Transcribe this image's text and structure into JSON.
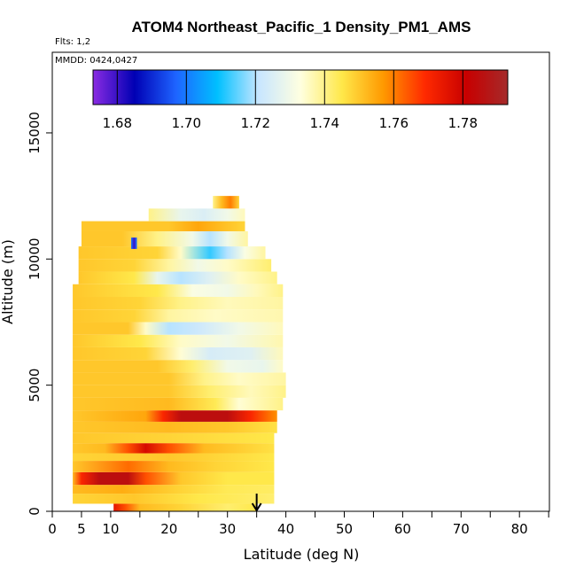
{
  "chart_data": {
    "type": "heatmap",
    "title": "ATOM4 Northeast_Pacific_1 Density_PM1_AMS",
    "flights_label": "Flts: 1,2",
    "dates_label": "MMDD: 0424,0427",
    "xlabel": "Latitude (deg N)",
    "ylabel": "Altitude (m)",
    "xlim": [
      0,
      85
    ],
    "ylim": [
      0,
      17500
    ],
    "x_ticks": [
      0,
      5,
      10,
      20,
      30,
      40,
      50,
      60,
      70,
      80
    ],
    "x_minor_ticks": [
      15,
      25,
      35,
      45,
      55,
      65,
      75,
      85
    ],
    "y_ticks": [
      0,
      5000,
      10000,
      15000
    ],
    "colorbar": {
      "min": 1.673,
      "max": 1.793,
      "ticks": [
        1.68,
        1.7,
        1.72,
        1.74,
        1.76,
        1.78
      ],
      "tick_labels": [
        "1.68",
        "1.70",
        "1.72",
        "1.74",
        "1.76",
        "1.78"
      ],
      "colors": [
        "#8a2be2",
        "#0000b4",
        "#1e64ff",
        "#00c0ff",
        "#c8e6ff",
        "#ffffe0",
        "#ffe84a",
        "#ff9900",
        "#ff2a00",
        "#c80000",
        "#a52a2a"
      ]
    },
    "arrow_latitude": 35,
    "bands": [
      {
        "alt0": 0,
        "alt1": 300,
        "lat0": 10.5,
        "lat1": 35,
        "stops": [
          [
            10.5,
            1.775
          ],
          [
            12.5,
            1.765
          ],
          [
            15,
            1.752
          ],
          [
            22,
            1.748
          ],
          [
            30,
            1.742
          ],
          [
            35,
            1.745
          ]
        ]
      },
      {
        "alt0": 300,
        "alt1": 700,
        "lat0": 3.5,
        "lat1": 38,
        "stops": [
          [
            3.5,
            1.748
          ],
          [
            14,
            1.75
          ],
          [
            25,
            1.745
          ],
          [
            38,
            1.742
          ]
        ]
      },
      {
        "alt0": 700,
        "alt1": 1050,
        "lat0": 3.5,
        "lat1": 38,
        "stops": [
          [
            3.5,
            1.752
          ],
          [
            12,
            1.754
          ],
          [
            22,
            1.748
          ],
          [
            30,
            1.744
          ],
          [
            38,
            1.743
          ]
        ]
      },
      {
        "alt0": 1050,
        "alt1": 1550,
        "lat0": 3.5,
        "lat1": 38,
        "stops": [
          [
            3.5,
            1.752
          ],
          [
            5,
            1.77
          ],
          [
            8,
            1.785
          ],
          [
            13,
            1.785
          ],
          [
            16,
            1.765
          ],
          [
            22,
            1.75
          ],
          [
            30,
            1.745
          ],
          [
            38,
            1.745
          ]
        ]
      },
      {
        "alt0": 1550,
        "alt1": 2000,
        "lat0": 3.5,
        "lat1": 38,
        "stops": [
          [
            3.5,
            1.75
          ],
          [
            13,
            1.762
          ],
          [
            20,
            1.752
          ],
          [
            28,
            1.748
          ],
          [
            38,
            1.745
          ]
        ]
      },
      {
        "alt0": 2000,
        "alt1": 2300,
        "lat0": 3.5,
        "lat1": 38,
        "stops": [
          [
            3.5,
            1.748
          ],
          [
            20,
            1.75
          ],
          [
            38,
            1.745
          ]
        ]
      },
      {
        "alt0": 2300,
        "alt1": 2700,
        "lat0": 3.5,
        "lat1": 38,
        "stops": [
          [
            3.5,
            1.75
          ],
          [
            9,
            1.752
          ],
          [
            13,
            1.765
          ],
          [
            16,
            1.778
          ],
          [
            20,
            1.765
          ],
          [
            26,
            1.752
          ],
          [
            38,
            1.746
          ]
        ]
      },
      {
        "alt0": 2700,
        "alt1": 3100,
        "lat0": 3.5,
        "lat1": 38,
        "stops": [
          [
            3.5,
            1.75
          ],
          [
            20,
            1.748
          ],
          [
            38,
            1.745
          ]
        ]
      },
      {
        "alt0": 3100,
        "alt1": 3550,
        "lat0": 3.5,
        "lat1": 38.5,
        "stops": [
          [
            3.5,
            1.75
          ],
          [
            20,
            1.752
          ],
          [
            30,
            1.75
          ],
          [
            38.5,
            1.746
          ]
        ]
      },
      {
        "alt0": 3550,
        "alt1": 4000,
        "lat0": 3.5,
        "lat1": 38.5,
        "stops": [
          [
            3.5,
            1.75
          ],
          [
            16,
            1.755
          ],
          [
            19,
            1.77
          ],
          [
            22,
            1.785
          ],
          [
            30,
            1.785
          ],
          [
            34,
            1.77
          ],
          [
            38.5,
            1.758
          ]
        ]
      },
      {
        "alt0": 4000,
        "alt1": 4500,
        "lat0": 3.5,
        "lat1": 39.5,
        "stops": [
          [
            3.5,
            1.75
          ],
          [
            20,
            1.752
          ],
          [
            28,
            1.744
          ],
          [
            32,
            1.734
          ],
          [
            39.5,
            1.74
          ]
        ]
      },
      {
        "alt0": 4500,
        "alt1": 5000,
        "lat0": 3.5,
        "lat1": 40,
        "stops": [
          [
            3.5,
            1.75
          ],
          [
            20,
            1.75
          ],
          [
            27,
            1.742
          ],
          [
            34,
            1.736
          ],
          [
            40,
            1.74
          ]
        ]
      },
      {
        "alt0": 5000,
        "alt1": 5500,
        "lat0": 3.5,
        "lat1": 40,
        "stops": [
          [
            3.5,
            1.75
          ],
          [
            20,
            1.75
          ],
          [
            26,
            1.74
          ],
          [
            32,
            1.735
          ],
          [
            40,
            1.738
          ]
        ]
      },
      {
        "alt0": 5500,
        "alt1": 6000,
        "lat0": 3.5,
        "lat1": 39.5,
        "stops": [
          [
            3.5,
            1.75
          ],
          [
            18,
            1.75
          ],
          [
            24,
            1.742
          ],
          [
            30,
            1.73
          ],
          [
            36,
            1.728
          ],
          [
            39.5,
            1.735
          ]
        ]
      },
      {
        "alt0": 6000,
        "alt1": 6500,
        "lat0": 3.5,
        "lat1": 39.5,
        "stops": [
          [
            3.5,
            1.75
          ],
          [
            16,
            1.748
          ],
          [
            22,
            1.734
          ],
          [
            27,
            1.724
          ],
          [
            34,
            1.726
          ],
          [
            39.5,
            1.736
          ]
        ]
      },
      {
        "alt0": 6500,
        "alt1": 7000,
        "lat0": 3.5,
        "lat1": 39.5,
        "stops": [
          [
            3.5,
            1.75
          ],
          [
            15,
            1.745
          ],
          [
            22,
            1.735
          ],
          [
            30,
            1.73
          ],
          [
            39.5,
            1.737
          ]
        ]
      },
      {
        "alt0": 7000,
        "alt1": 7500,
        "lat0": 3.5,
        "lat1": 39.5,
        "stops": [
          [
            3.5,
            1.75
          ],
          [
            13,
            1.75
          ],
          [
            16,
            1.735
          ],
          [
            20,
            1.72
          ],
          [
            25,
            1.722
          ],
          [
            32,
            1.73
          ],
          [
            39.5,
            1.736
          ]
        ]
      },
      {
        "alt0": 7500,
        "alt1": 8000,
        "lat0": 3.5,
        "lat1": 39.5,
        "stops": [
          [
            3.5,
            1.75
          ],
          [
            14,
            1.748
          ],
          [
            20,
            1.738
          ],
          [
            28,
            1.735
          ],
          [
            39.5,
            1.737
          ]
        ]
      },
      {
        "alt0": 8000,
        "alt1": 8500,
        "lat0": 3.5,
        "lat1": 39.5,
        "stops": [
          [
            3.5,
            1.75
          ],
          [
            15,
            1.748
          ],
          [
            22,
            1.74
          ],
          [
            30,
            1.736
          ],
          [
            39.5,
            1.738
          ]
        ]
      },
      {
        "alt0": 8500,
        "alt1": 9000,
        "lat0": 3.5,
        "lat1": 39.5,
        "stops": [
          [
            3.5,
            1.75
          ],
          [
            18,
            1.745
          ],
          [
            24,
            1.732
          ],
          [
            30,
            1.73
          ],
          [
            35,
            1.736
          ],
          [
            39.5,
            1.74
          ]
        ]
      },
      {
        "alt0": 9000,
        "alt1": 9500,
        "lat0": 4.5,
        "lat1": 38.5,
        "stops": [
          [
            4.5,
            1.75
          ],
          [
            14,
            1.745
          ],
          [
            18,
            1.728
          ],
          [
            22,
            1.72
          ],
          [
            27,
            1.726
          ],
          [
            32,
            1.735
          ],
          [
            38.5,
            1.74
          ]
        ]
      },
      {
        "alt0": 9500,
        "alt1": 10000,
        "lat0": 4.5,
        "lat1": 37.5,
        "stops": [
          [
            4.5,
            1.75
          ],
          [
            14,
            1.748
          ],
          [
            20,
            1.738
          ],
          [
            25,
            1.73
          ],
          [
            30,
            1.735
          ],
          [
            37.5,
            1.742
          ]
        ]
      },
      {
        "alt0": 10000,
        "alt1": 10500,
        "lat0": 4.5,
        "lat1": 36.5,
        "stops": [
          [
            4.5,
            1.75
          ],
          [
            18,
            1.748
          ],
          [
            22,
            1.735
          ],
          [
            27,
            1.712
          ],
          [
            30,
            1.72
          ],
          [
            33,
            1.732
          ],
          [
            36.5,
            1.738
          ]
        ]
      },
      {
        "alt0": 10500,
        "alt1": 11100,
        "lat0": 5,
        "lat1": 33.5,
        "stops": [
          [
            5,
            1.75
          ],
          [
            12,
            1.75
          ],
          [
            18,
            1.74
          ],
          [
            24,
            1.73
          ],
          [
            27,
            1.72
          ],
          [
            30,
            1.73
          ],
          [
            33.5,
            1.738
          ]
        ]
      },
      {
        "alt0": 11100,
        "alt1": 11500,
        "lat0": 5,
        "lat1": 33,
        "stops": [
          [
            5,
            1.75
          ],
          [
            20,
            1.75
          ],
          [
            25,
            1.755
          ],
          [
            33,
            1.748
          ]
        ]
      },
      {
        "alt0": 11500,
        "alt1": 12000,
        "lat0": 16.5,
        "lat1": 33,
        "stops": [
          [
            16.5,
            1.74
          ],
          [
            22,
            1.728
          ],
          [
            26,
            1.725
          ],
          [
            30,
            1.73
          ],
          [
            33,
            1.736
          ]
        ]
      },
      {
        "alt0": 12000,
        "alt1": 12500,
        "lat0": 27.5,
        "lat1": 32,
        "stops": [
          [
            27.5,
            1.74
          ],
          [
            29,
            1.752
          ],
          [
            30.5,
            1.76
          ],
          [
            32,
            1.748
          ]
        ]
      },
      {
        "alt0": 10400,
        "alt1": 10850,
        "lat0": 13.5,
        "lat1": 14.5,
        "stops": [
          [
            13.5,
            1.7
          ],
          [
            14,
            1.68
          ],
          [
            14.5,
            1.7
          ]
        ]
      }
    ]
  }
}
